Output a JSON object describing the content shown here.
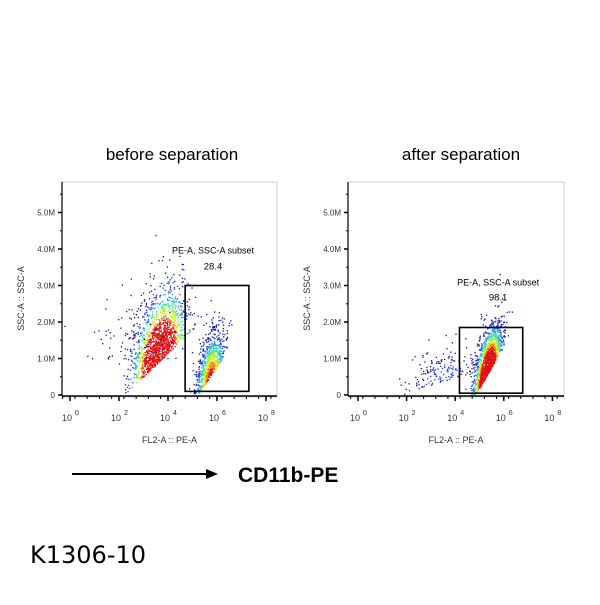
{
  "chart_data": [
    {
      "type": "scatter",
      "title": "before separation",
      "xlabel": "FL2-A :: PE-A",
      "ylabel": "SSC-A :: SSC-A",
      "xscale": "log",
      "xlim": [
        0.5,
        200000000
      ],
      "ylim": [
        0,
        5.8
      ],
      "x_ticks": [
        {
          "base": "10",
          "exp": "0"
        },
        {
          "base": "10",
          "exp": "2"
        },
        {
          "base": "10",
          "exp": "4"
        },
        {
          "base": "10",
          "exp": "6"
        },
        {
          "base": "10",
          "exp": "8"
        }
      ],
      "y_ticks": [
        "0",
        "1.0M",
        "2.0M",
        "3.0M",
        "4.0M",
        "5.0M"
      ],
      "gate": {
        "label": "PE-A, SSC-A subset",
        "value": "28.4",
        "x_range": [
          50000,
          20000000
        ],
        "y_range_M": [
          0.1,
          3.0
        ]
      },
      "colormap": [
        "#1010a0",
        "#2040e0",
        "#20a0e0",
        "#30e0a0",
        "#a0f020",
        "#f0e020",
        "#f08010",
        "#e01010"
      ]
    },
    {
      "type": "scatter",
      "title": "after separation",
      "xlabel": "FL2-A :: PE-A",
      "ylabel": "SSC-A :: SSC-A",
      "xscale": "log",
      "xlim": [
        0.5,
        200000000
      ],
      "ylim": [
        0,
        5.8
      ],
      "x_ticks": [
        {
          "base": "10",
          "exp": "0"
        },
        {
          "base": "10",
          "exp": "2"
        },
        {
          "base": "10",
          "exp": "4"
        },
        {
          "base": "10",
          "exp": "6"
        },
        {
          "base": "10",
          "exp": "8"
        }
      ],
      "y_ticks": [
        "0",
        "1.0M",
        "2.0M",
        "3.0M",
        "4.0M",
        "5.0M"
      ],
      "gate": {
        "label": "PE-A, SSC-A subset",
        "value": "98.1",
        "x_range": [
          15000,
          6000000
        ],
        "y_range_M": [
          0.05,
          1.85
        ]
      },
      "colormap": [
        "#1010a0",
        "#2040e0",
        "#20a0e0",
        "#30e0a0",
        "#a0f020",
        "#f0e020",
        "#f08010",
        "#e01010"
      ]
    }
  ],
  "marker_label": "CD11b-PE",
  "catalog_number": "K1306-10"
}
